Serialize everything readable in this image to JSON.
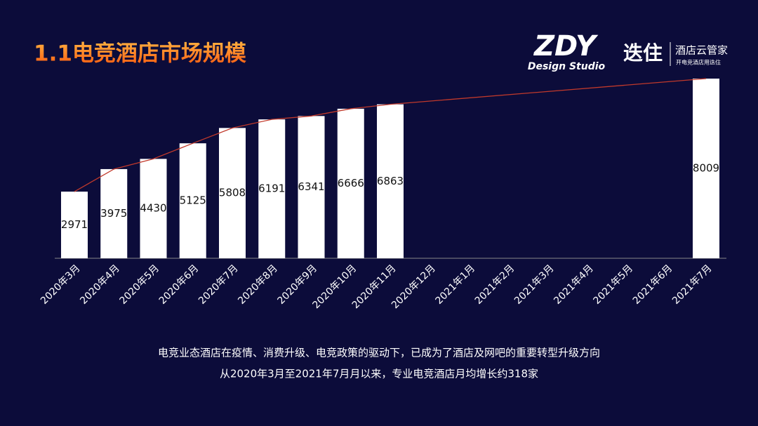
{
  "header": {
    "title": "1.1电竞酒店市场规模"
  },
  "logos": {
    "zdy": "ZDY",
    "zdy_sub": "Design Studio",
    "brand": "迭住",
    "brand_name": "酒店云管家",
    "brand_slogan": "开电竞酒店用迭住"
  },
  "chart_data": {
    "type": "bar",
    "categories": [
      "2020年3月",
      "2020年4月",
      "2020年5月",
      "2020年6月",
      "2020年7月",
      "2020年8月",
      "2020年9月",
      "2020年10月",
      "2020年11月",
      "2020年12月",
      "2021年1月",
      "2021年2月",
      "2021年3月",
      "2021年4月",
      "2021年5月",
      "2021年6月",
      "2021年7月"
    ],
    "values": [
      2971,
      3975,
      4430,
      5125,
      5808,
      6191,
      6341,
      6666,
      6863,
      null,
      null,
      null,
      null,
      null,
      null,
      null,
      8009
    ],
    "color": "#ffffff",
    "line_color": "#c0392b"
  },
  "caption": [
    "电竞业态酒店在疫情、消费升级、电竞政策的驱动下，已成为了酒店及网吧的重要转型升级方向",
    "从2020年3月至2021年7月月以来，专业电竞酒店月均增长约318家"
  ]
}
